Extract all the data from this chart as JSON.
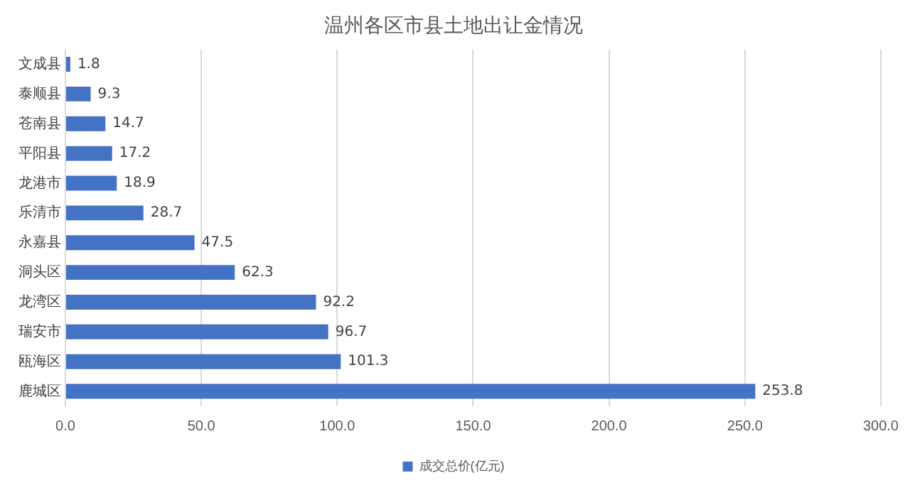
{
  "chart_data": {
    "type": "bar",
    "orientation": "horizontal",
    "title": "温州各区市县土地出让金情况",
    "categories": [
      "文成县",
      "泰顺县",
      "苍南县",
      "平阳县",
      "龙港市",
      "乐清市",
      "永嘉县",
      "洞头区",
      "龙湾区",
      "瑞安市",
      "瓯海区",
      "鹿城区"
    ],
    "series": [
      {
        "name": "成交总价(亿元)",
        "color": "#4472c4",
        "values": [
          1.8,
          9.3,
          14.7,
          17.2,
          18.9,
          28.7,
          47.5,
          62.3,
          92.2,
          96.7,
          101.3,
          253.8
        ]
      }
    ],
    "xlim": [
      0,
      300
    ],
    "xticks": [
      {
        "value": 0,
        "label": "0.0"
      },
      {
        "value": 50,
        "label": "50.0"
      },
      {
        "value": 100,
        "label": "100.0"
      },
      {
        "value": 150,
        "label": "150.0"
      },
      {
        "value": 200,
        "label": "200.0"
      },
      {
        "value": 250,
        "label": "250.0"
      },
      {
        "value": 300,
        "label": "300.0"
      }
    ],
    "grid": "x",
    "legend": "bottom",
    "data_labels": true
  }
}
